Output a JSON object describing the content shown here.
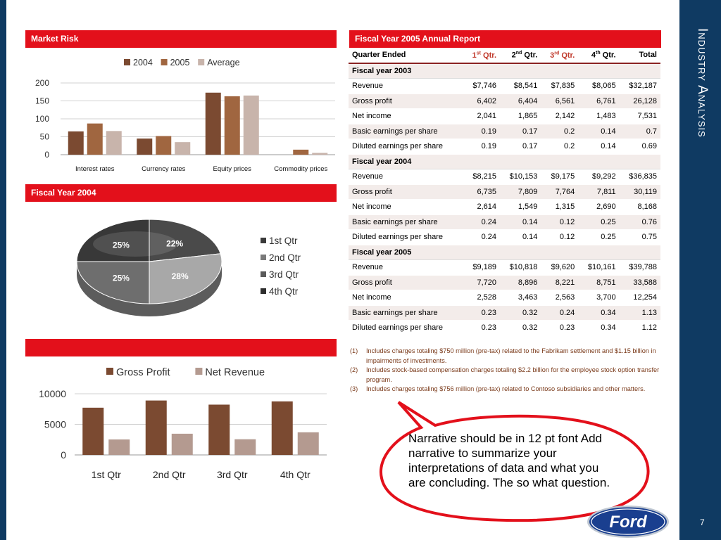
{
  "side": {
    "title": "Industry Analysis",
    "slide_number": "7"
  },
  "panels": {
    "market_risk": "Market Risk",
    "fy2004": "Fiscal Year 2004",
    "bottom_bar": "",
    "annual_report": "Fiscal Year 2005 Annual Report"
  },
  "table": {
    "header": {
      "label": "Quarter Ended",
      "q1": "1",
      "q1_sup": "st",
      "q2": "2",
      "q2_sup": "nd",
      "q3": "3",
      "q3_sup": "rd",
      "q4": "4",
      "q4_sup": "th",
      "qtr": " Qtr.",
      "total": "Total"
    },
    "rows": [
      {
        "section": "Fiscal year 2003"
      },
      {
        "label": "Revenue",
        "q1": "$7,746",
        "q2": "$8,541",
        "q3": "$7,835",
        "q4": "$8,065",
        "total": "$32,187"
      },
      {
        "label": "Gross profit",
        "q1": "6,402",
        "q2": "6,404",
        "q3": "6,561",
        "q4": "6,761",
        "total": "26,128"
      },
      {
        "label": "Net income",
        "q1": "2,041",
        "q2": "1,865",
        "q3": "2,142",
        "q4": "1,483",
        "total": "7,531"
      },
      {
        "label": "Basic earnings per share",
        "q1": "0.19",
        "q2": "0.17",
        "q3": "0.2",
        "q4": "0.14",
        "total": "0.7"
      },
      {
        "label": "Diluted earnings per share",
        "q1": "0.19",
        "q2": "0.17",
        "q3": "0.2",
        "q4": "0.14",
        "total": "0.69"
      },
      {
        "section": "Fiscal year 2004"
      },
      {
        "label": "Revenue",
        "q1": "$8,215",
        "q2": "$10,153",
        "q3": "$9,175",
        "q4": "$9,292",
        "total": "$36,835"
      },
      {
        "label": "Gross profit",
        "q1": "6,735",
        "q2": "7,809",
        "q3": "7,764",
        "q4": "7,811",
        "total": "30,119"
      },
      {
        "label": "Net income",
        "q1": "2,614",
        "q2": "1,549",
        "q3": "1,315",
        "q4": "2,690",
        "total": "8,168"
      },
      {
        "label": "Basic earnings per share",
        "q1": "0.24",
        "q2": "0.14",
        "q3": "0.12",
        "q4": "0.25",
        "total": "0.76"
      },
      {
        "label": "Diluted earnings per share",
        "q1": "0.24",
        "q2": "0.14",
        "q3": "0.12",
        "q4": "0.25",
        "total": "0.75"
      },
      {
        "section": "Fiscal year 2005"
      },
      {
        "label": "Revenue",
        "q1": "$9,189",
        "q2": "$10,818",
        "q3": "$9,620",
        "q4": "$10,161",
        "total": "$39,788"
      },
      {
        "label": "Gross profit",
        "q1": "7,720",
        "q2": "8,896",
        "q3": "8,221",
        "q4": "8,751",
        "total": "33,588"
      },
      {
        "label": "Net income",
        "q1": "2,528",
        "q2": "3,463",
        "q3": "2,563",
        "q4": "3,700",
        "total": "12,254"
      },
      {
        "label": "Basic earnings per share",
        "q1": "0.23",
        "q2": "0.32",
        "q3": "0.24",
        "q4": "0.34",
        "total": "1.13"
      },
      {
        "label": "Diluted earnings per share",
        "q1": "0.23",
        "q2": "0.32",
        "q3": "0.23",
        "q4": "0.34",
        "total": "1.12"
      }
    ]
  },
  "notes": [
    {
      "n": "(1)",
      "text": "Includes charges totaling $750 million (pre-tax) related to the Fabrikam settlement and $1.15 billion in impairments of investments."
    },
    {
      "n": "(2)",
      "text": "Includes stock-based compensation charges totaling $2.2 billion for the employee stock option transfer program."
    },
    {
      "n": "(3)",
      "text": "Includes charges totaling $756 million (pre-tax) related to Contoso subsidiaries and other matters."
    }
  ],
  "bubble": {
    "text": "Narrative should be in 12 pt font Add narrative to summarize your interpretations of data and what you are concluding. The so what question."
  },
  "logo": {
    "text": "Ford"
  },
  "colors": {
    "red": "#e3101b",
    "navy": "#0f3a62",
    "c2004": "#7b4a31",
    "c2005": "#a06640",
    "avg": "#c8b4ab",
    "gross": "#7b4a31",
    "net": "#b49a90"
  },
  "chart_data": [
    {
      "type": "bar",
      "categories": [
        "Interest rates",
        "Currency rates",
        "Equity prices",
        "Commodity prices"
      ],
      "series": [
        {
          "name": "2004",
          "values": [
            65,
            45,
            173,
            0
          ]
        },
        {
          "name": "2005",
          "values": [
            87,
            52,
            163,
            14
          ]
        },
        {
          "name": "Average",
          "values": [
            66,
            35,
            165,
            5
          ]
        }
      ],
      "ylim": [
        0,
        200
      ],
      "yticks": [
        0,
        50,
        100,
        150,
        200
      ],
      "legend": "top",
      "grid": true
    },
    {
      "type": "pie",
      "categories": [
        "1st Qtr",
        "2nd Qtr",
        "3rd Qtr",
        "4th Qtr"
      ],
      "values": [
        22,
        28,
        25,
        25
      ],
      "labels": [
        "22%",
        "28%",
        "25%",
        "25%"
      ],
      "legend": "right"
    },
    {
      "type": "bar",
      "categories": [
        "1st Qtr",
        "2nd Qtr",
        "3rd Qtr",
        "4th Qtr"
      ],
      "series": [
        {
          "name": "Gross Profit",
          "values": [
            7720,
            8896,
            8221,
            8751
          ]
        },
        {
          "name": "Net Revenue",
          "values": [
            2528,
            3463,
            2563,
            3700
          ]
        }
      ],
      "ylim": [
        0,
        10000
      ],
      "yticks": [
        0,
        5000,
        10000
      ],
      "legend": "top",
      "grid": true
    }
  ]
}
